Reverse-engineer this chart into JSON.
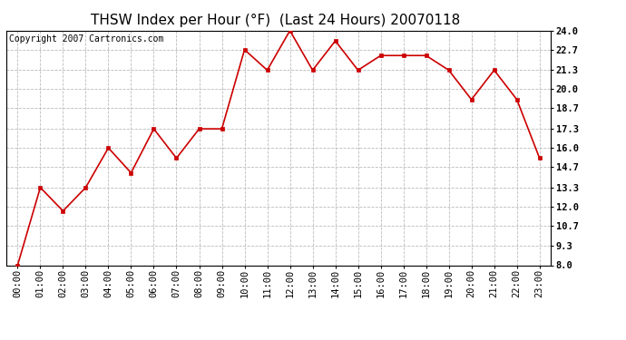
{
  "title": "THSW Index per Hour (°F)  (Last 24 Hours) 20070118",
  "copyright": "Copyright 2007 Cartronics.com",
  "x_labels": [
    "00:00",
    "01:00",
    "02:00",
    "03:00",
    "04:00",
    "05:00",
    "06:00",
    "07:00",
    "08:00",
    "09:00",
    "10:00",
    "11:00",
    "12:00",
    "13:00",
    "14:00",
    "15:00",
    "16:00",
    "17:00",
    "18:00",
    "19:00",
    "20:00",
    "21:00",
    "22:00",
    "23:00"
  ],
  "y_values": [
    8.0,
    13.3,
    11.7,
    13.3,
    16.0,
    14.3,
    17.3,
    15.3,
    17.3,
    17.3,
    22.7,
    21.3,
    24.0,
    21.3,
    23.3,
    21.3,
    22.3,
    22.3,
    22.3,
    21.3,
    19.3,
    21.3,
    19.3,
    15.3
  ],
  "ylim_min": 8.0,
  "ylim_max": 24.0,
  "yticks": [
    8.0,
    9.3,
    10.7,
    12.0,
    13.3,
    14.7,
    16.0,
    17.3,
    18.7,
    20.0,
    21.3,
    22.7,
    24.0
  ],
  "ytick_labels": [
    "8.0",
    "9.3",
    "10.7",
    "12.0",
    "13.3",
    "14.7",
    "16.0",
    "17.3",
    "18.7",
    "20.0",
    "21.3",
    "22.7",
    "24.0"
  ],
  "line_color": "#cc0000",
  "marker_color": "#cc0000",
  "background_color": "#ffffff",
  "plot_bg_color": "#ffffff",
  "grid_color": "#bbbbbb",
  "title_fontsize": 11,
  "copyright_fontsize": 7,
  "tick_fontsize": 7.5,
  "marker_size": 3,
  "line_width": 1.2
}
